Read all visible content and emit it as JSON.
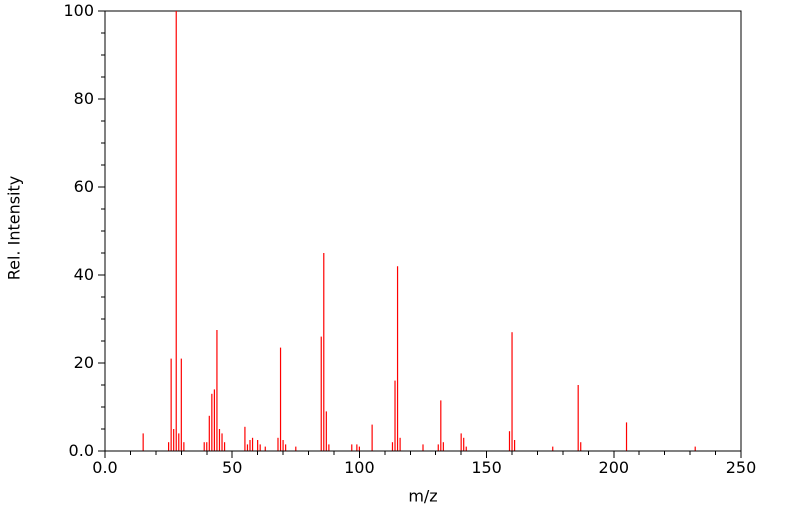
{
  "figure": {
    "background_color": "#ffffff"
  },
  "chart_data": {
    "type": "bar",
    "subtype": "mass-spectrum-stick-plot",
    "title": "",
    "xlabel": "m/z",
    "ylabel": "Rel. Intensity",
    "xlim": [
      0,
      250
    ],
    "ylim": [
      0,
      100
    ],
    "x_major_step": 50,
    "x_minor_step": 10,
    "y_major_step": 20,
    "y_minor_step": 5,
    "grid": false,
    "legend": false,
    "axis_color": "#000000",
    "peak_color": "#ff0000",
    "x_major_ticks": [
      {
        "value": 0,
        "label": "0.0"
      },
      {
        "value": 50,
        "label": "50"
      },
      {
        "value": 100,
        "label": "100"
      },
      {
        "value": 150,
        "label": "150"
      },
      {
        "value": 200,
        "label": "200"
      },
      {
        "value": 250,
        "label": "250"
      }
    ],
    "y_major_ticks": [
      {
        "value": 0,
        "label": "0.0"
      },
      {
        "value": 20,
        "label": "20"
      },
      {
        "value": 40,
        "label": "40"
      },
      {
        "value": 60,
        "label": "60"
      },
      {
        "value": 80,
        "label": "80"
      },
      {
        "value": 100,
        "label": "100"
      }
    ],
    "peaks": [
      {
        "mz": 15,
        "intensity": 4
      },
      {
        "mz": 25,
        "intensity": 2
      },
      {
        "mz": 26,
        "intensity": 21
      },
      {
        "mz": 27,
        "intensity": 5
      },
      {
        "mz": 28,
        "intensity": 100
      },
      {
        "mz": 29,
        "intensity": 4
      },
      {
        "mz": 30,
        "intensity": 21
      },
      {
        "mz": 31,
        "intensity": 2
      },
      {
        "mz": 39,
        "intensity": 2
      },
      {
        "mz": 40,
        "intensity": 2
      },
      {
        "mz": 41,
        "intensity": 8
      },
      {
        "mz": 42,
        "intensity": 13
      },
      {
        "mz": 43,
        "intensity": 14
      },
      {
        "mz": 44,
        "intensity": 27.5
      },
      {
        "mz": 45,
        "intensity": 5
      },
      {
        "mz": 46,
        "intensity": 4
      },
      {
        "mz": 47,
        "intensity": 2
      },
      {
        "mz": 55,
        "intensity": 5.5
      },
      {
        "mz": 56,
        "intensity": 1.5
      },
      {
        "mz": 57,
        "intensity": 2.5
      },
      {
        "mz": 58,
        "intensity": 3
      },
      {
        "mz": 60,
        "intensity": 2.5
      },
      {
        "mz": 61,
        "intensity": 1.5
      },
      {
        "mz": 63,
        "intensity": 1
      },
      {
        "mz": 68,
        "intensity": 3
      },
      {
        "mz": 69,
        "intensity": 23.5
      },
      {
        "mz": 70,
        "intensity": 2.5
      },
      {
        "mz": 71,
        "intensity": 1.5
      },
      {
        "mz": 75,
        "intensity": 1
      },
      {
        "mz": 85,
        "intensity": 26
      },
      {
        "mz": 86,
        "intensity": 45
      },
      {
        "mz": 87,
        "intensity": 9
      },
      {
        "mz": 88,
        "intensity": 1.5
      },
      {
        "mz": 97,
        "intensity": 1.5
      },
      {
        "mz": 99,
        "intensity": 1.5
      },
      {
        "mz": 100,
        "intensity": 1
      },
      {
        "mz": 105,
        "intensity": 6
      },
      {
        "mz": 113,
        "intensity": 2
      },
      {
        "mz": 114,
        "intensity": 16
      },
      {
        "mz": 115,
        "intensity": 42
      },
      {
        "mz": 116,
        "intensity": 3
      },
      {
        "mz": 125,
        "intensity": 1.5
      },
      {
        "mz": 131,
        "intensity": 1.5
      },
      {
        "mz": 132,
        "intensity": 11.5
      },
      {
        "mz": 133,
        "intensity": 2
      },
      {
        "mz": 140,
        "intensity": 4
      },
      {
        "mz": 141,
        "intensity": 3
      },
      {
        "mz": 142,
        "intensity": 1
      },
      {
        "mz": 159,
        "intensity": 4.5
      },
      {
        "mz": 160,
        "intensity": 27
      },
      {
        "mz": 161,
        "intensity": 2.5
      },
      {
        "mz": 176,
        "intensity": 1
      },
      {
        "mz": 186,
        "intensity": 15
      },
      {
        "mz": 187,
        "intensity": 2
      },
      {
        "mz": 205,
        "intensity": 6.5
      },
      {
        "mz": 232,
        "intensity": 1
      }
    ]
  }
}
